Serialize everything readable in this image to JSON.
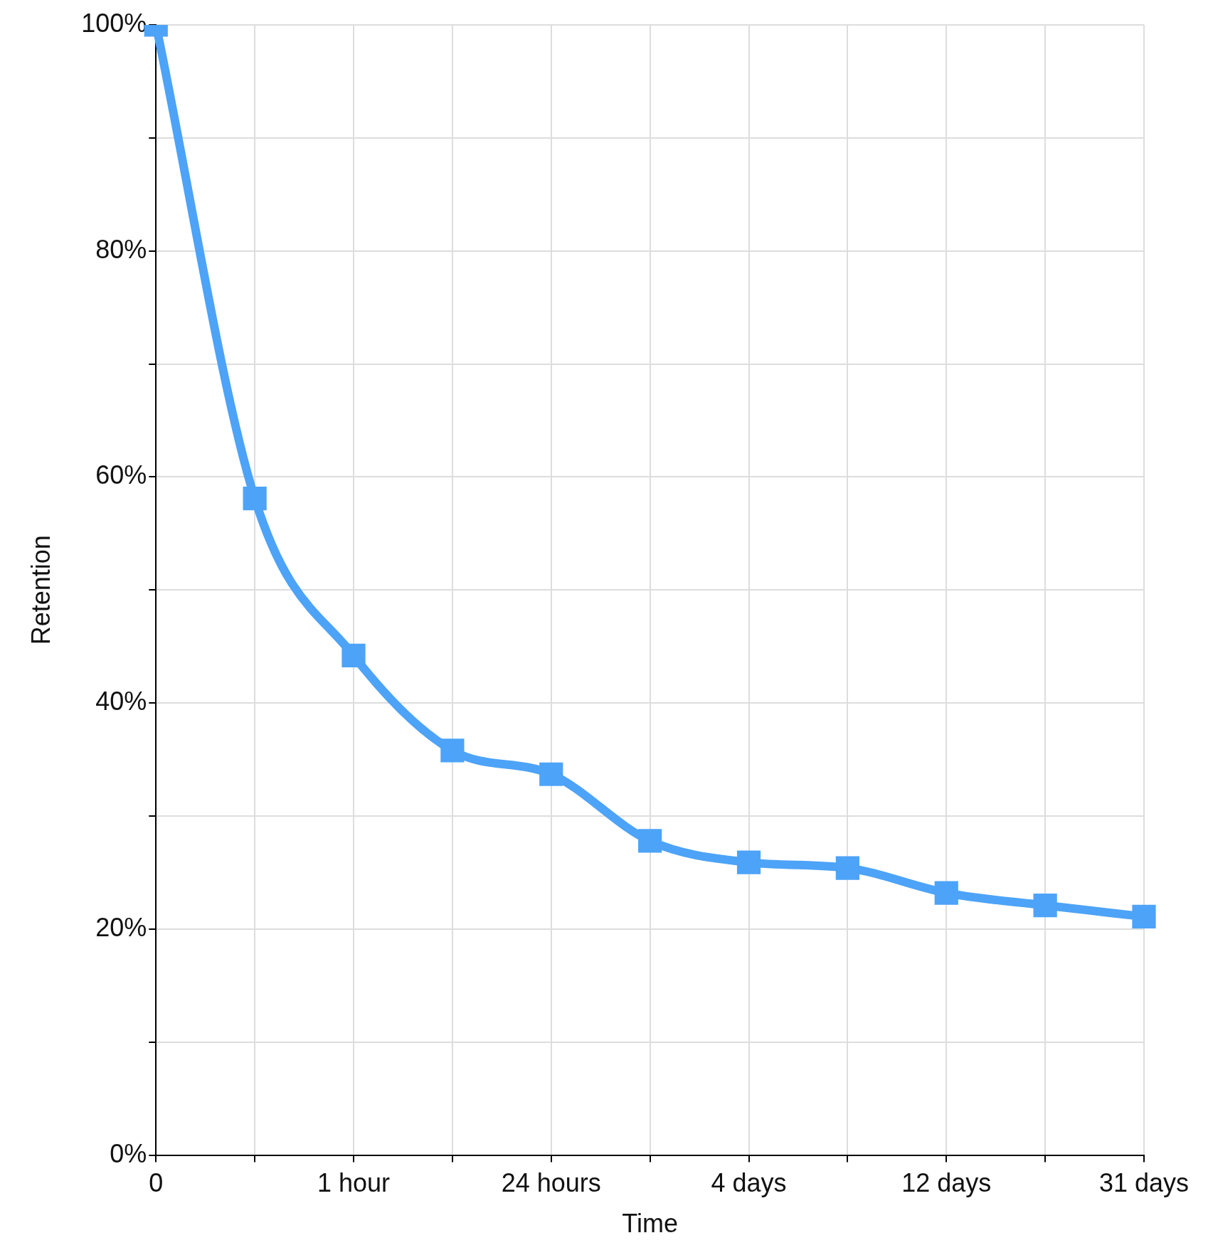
{
  "chart_data": {
    "type": "line",
    "xlabel": "Time",
    "ylabel": "Retention",
    "categories": [
      "0",
      null,
      "1 hour",
      null,
      "24 hours",
      null,
      "4 days",
      null,
      "12 days",
      null,
      "31 days"
    ],
    "series": [
      {
        "color": "#4da3f7",
        "values": [
          100,
          58.1,
          44.2,
          35.8,
          33.7,
          27.8,
          25.9,
          25.4,
          23.2,
          22.1,
          21.1
        ]
      }
    ],
    "ylim": [
      0,
      100
    ],
    "yticks": [
      {
        "value": 0,
        "label": "0%"
      },
      {
        "value": 10,
        "label": null
      },
      {
        "value": 20,
        "label": "20%"
      },
      {
        "value": 30,
        "label": null
      },
      {
        "value": 40,
        "label": "40%"
      },
      {
        "value": 50,
        "label": null
      },
      {
        "value": 60,
        "label": "60%"
      },
      {
        "value": 70,
        "label": null
      },
      {
        "value": 80,
        "label": "80%"
      },
      {
        "value": 90,
        "label": null
      },
      {
        "value": 100,
        "label": "100%"
      }
    ],
    "grid": true,
    "legend": false,
    "marker": "square",
    "line_style": "solid"
  }
}
